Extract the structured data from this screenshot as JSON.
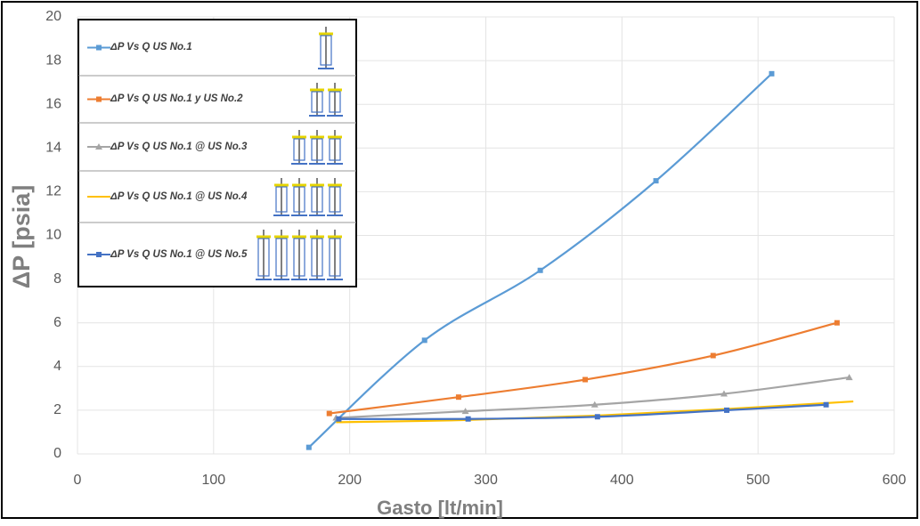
{
  "chart_data": {
    "type": "line",
    "x_label": "Gasto [lt/min]",
    "y_label": "ΔP [psia]",
    "xlim": [
      0,
      600
    ],
    "xticks": [
      0,
      100,
      200,
      300,
      400,
      500,
      600
    ],
    "ylim": [
      0,
      20
    ],
    "yticks": [
      0,
      2,
      4,
      6,
      8,
      10,
      12,
      14,
      16,
      18,
      20
    ],
    "grid": true,
    "legend": "upper left",
    "series": [
      {
        "name": "ΔP Vs Q US No.1",
        "color": "#5b9bd5",
        "x": [
          170,
          255,
          340,
          425,
          510
        ],
        "values": [
          0.3,
          5.2,
          8.4,
          12.5,
          17.4
        ]
      },
      {
        "name": "ΔP Vs Q US No.1 y US No.2",
        "color": "#ed7d31",
        "x": [
          185,
          280,
          373,
          467,
          558
        ],
        "values": [
          1.85,
          2.6,
          3.4,
          4.5,
          6.0
        ]
      },
      {
        "name": "ΔP Vs Q US No.1 @ US No.3",
        "color": "#a5a5a5",
        "x": [
          190,
          285,
          380,
          475,
          567
        ],
        "values": [
          1.65,
          1.95,
          2.25,
          2.75,
          3.5
        ]
      },
      {
        "name": "ΔP Vs Q US No.1 @ US No.4",
        "color": "#ffc000",
        "x": [
          190,
          285,
          380,
          475,
          570
        ],
        "values": [
          1.45,
          1.55,
          1.75,
          2.05,
          2.4
        ]
      },
      {
        "name": "ΔP Vs Q US No.1 @ US No.5",
        "color": "#4472c4",
        "x": [
          192,
          287,
          382,
          477,
          550
        ],
        "values": [
          1.6,
          1.6,
          1.7,
          2.0,
          2.25
        ]
      }
    ]
  }
}
